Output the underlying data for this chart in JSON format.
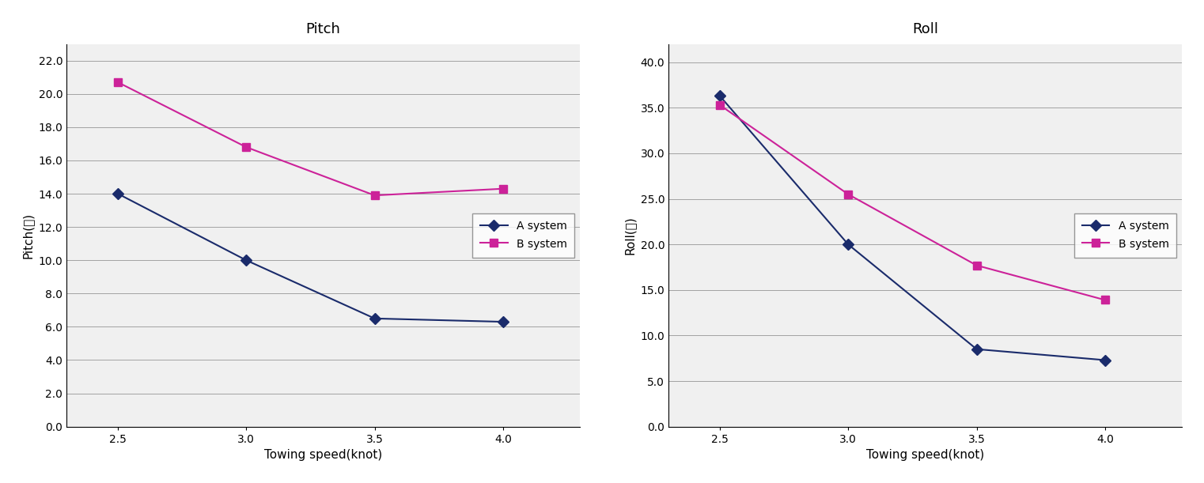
{
  "x": [
    2.5,
    3.0,
    3.5,
    4.0
  ],
  "pitch_A": [
    14.0,
    10.0,
    6.5,
    6.3
  ],
  "pitch_B": [
    20.7,
    16.8,
    13.9,
    14.3
  ],
  "roll_A": [
    36.3,
    20.0,
    8.5,
    7.3
  ],
  "roll_B": [
    35.3,
    25.5,
    17.7,
    13.9
  ],
  "pitch_title": "Pitch",
  "roll_title": "Roll",
  "pitch_ylabel": "Pitch(도)",
  "roll_ylabel": "Roll(도)",
  "xlabel": "Towing speed(knot)",
  "legend_A": "A system",
  "legend_B": "B system",
  "pitch_ylim": [
    0,
    23
  ],
  "pitch_yticks": [
    0.0,
    2.0,
    4.0,
    6.0,
    8.0,
    10.0,
    12.0,
    14.0,
    16.0,
    18.0,
    20.0,
    22.0
  ],
  "roll_ylim": [
    0,
    42
  ],
  "roll_yticks": [
    0.0,
    5.0,
    10.0,
    15.0,
    20.0,
    25.0,
    30.0,
    35.0,
    40.0
  ],
  "xticks": [
    2.5,
    3.0,
    3.5,
    4.0
  ],
  "color_A": "#1a2b6b",
  "color_B": "#cc2299",
  "marker_A": "D",
  "marker_B": "s",
  "outer_bg": "#f0f0f0",
  "plot_bg": "#ffffff",
  "fig_bg": "#ffffff",
  "grid_color": "#555555",
  "grid_alpha": 0.5,
  "grid_linewidth": 0.7
}
